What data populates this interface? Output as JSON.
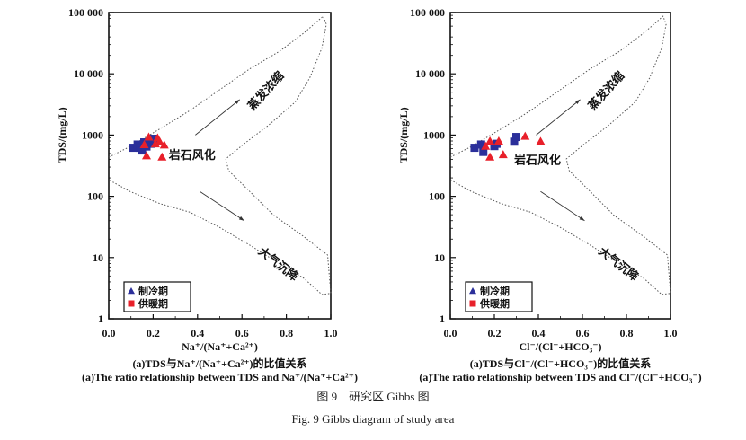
{
  "figure": {
    "caption_cn": "图 9　研究区 Gibbs 图",
    "caption_en": "Fig. 9 Gibbs diagram of study area"
  },
  "colors": {
    "cooling": "#2b2f9a",
    "heating": "#e8202a",
    "envelope": "#555555"
  },
  "gibbs_envelope": [
    [
      0,
      436
    ],
    [
      0.095,
      646
    ],
    [
      0.23,
      1259
    ],
    [
      0.365,
      2512
    ],
    [
      0.5,
      5495
    ],
    [
      0.635,
      12023
    ],
    [
      0.77,
      23442
    ],
    [
      0.88,
      46774
    ],
    [
      0.966,
      87096
    ],
    [
      0.98,
      64565
    ],
    [
      0.96,
      26303
    ],
    [
      0.905,
      8511
    ],
    [
      0.84,
      3467
    ],
    [
      0.716,
      1413
    ],
    [
      0.61,
      724
    ],
    [
      0.527,
      407
    ],
    [
      0.54,
      263
    ],
    [
      0.635,
      120
    ],
    [
      0.743,
      49
    ],
    [
      0.878,
      22
    ],
    [
      0.986,
      11
    ],
    [
      1.0,
      2.6
    ],
    [
      0.96,
      2.5
    ],
    [
      0.878,
      4.6
    ],
    [
      0.77,
      7.9
    ],
    [
      0.635,
      16
    ],
    [
      0.5,
      31
    ],
    [
      0.365,
      55
    ],
    [
      0.23,
      76
    ],
    [
      0.095,
      120
    ],
    [
      0,
      186
    ]
  ],
  "chart_data": [
    {
      "type": "scatter",
      "xlabel": "Na⁺/(Na⁺+Ca²⁺)",
      "ylabel": "TDS/(mg/L)",
      "caption_cn": "(a)TDS与Na⁺/(Na⁺+Ca²⁺)的比值关系",
      "caption_en": "(a)The ratio relationship between TDS and Na⁺/(Na⁺+Ca²⁺)",
      "xlim": [
        0,
        1.0
      ],
      "ylim": [
        1,
        100000
      ],
      "yscale": "log",
      "xticks": [
        "0.0",
        "0.2",
        "0.4",
        "0.6",
        "0.8",
        "1.0"
      ],
      "yticks": [
        "1",
        "10",
        "100",
        "1000",
        "10 000",
        "100 000"
      ],
      "annotations": {
        "evaporation": "蒸发浓缩",
        "rock": "岩石风化",
        "precipitation": "大气沉降"
      },
      "legend_position": "bottom-left",
      "series": [
        {
          "name": "制冷期",
          "legend_marker": "triangle",
          "plot_marker": "square",
          "color": "#2b2f9a",
          "points": [
            [
              0.11,
              620
            ],
            [
              0.13,
              700
            ],
            [
              0.14,
              620
            ],
            [
              0.15,
              560
            ],
            [
              0.16,
              760
            ],
            [
              0.17,
              650
            ],
            [
              0.2,
              870
            ],
            [
              0.21,
              800
            ],
            [
              0.19,
              720
            ]
          ]
        },
        {
          "name": "供暖期",
          "legend_marker": "square",
          "plot_marker": "triangle",
          "color": "#e8202a",
          "points": [
            [
              0.18,
              930
            ],
            [
              0.22,
              900
            ],
            [
              0.23,
              780
            ],
            [
              0.25,
              690
            ],
            [
              0.17,
              460
            ],
            [
              0.24,
              440
            ],
            [
              0.16,
              700
            ],
            [
              0.21,
              720
            ]
          ]
        }
      ]
    },
    {
      "type": "scatter",
      "xlabel": "Cl⁻/(Cl⁻+HCO₃⁻)",
      "ylabel": "TDS/(mg/L)",
      "caption_cn": "(a)TDS与Cl⁻/(Cl⁻+HCO₃⁻)的比值关系",
      "caption_en": "(a)The ratio relationship between TDS and Cl⁻/(Cl⁻+HCO₃⁻)",
      "xlim": [
        0,
        1.0
      ],
      "ylim": [
        1,
        100000
      ],
      "yscale": "log",
      "xticks": [
        "0.0",
        "0.2",
        "0.4",
        "0.6",
        "0.8",
        "1.0"
      ],
      "yticks": [
        "1",
        "10",
        "100",
        "1000",
        "10 000",
        "100 000"
      ],
      "annotations": {
        "evaporation": "蒸发浓缩",
        "rock": "岩石风化",
        "precipitation": "大气沉降"
      },
      "legend_position": "bottom-left",
      "series": [
        {
          "name": "制冷期",
          "legend_marker": "triangle",
          "plot_marker": "square",
          "color": "#2b2f9a",
          "points": [
            [
              0.11,
              620
            ],
            [
              0.14,
              700
            ],
            [
              0.15,
              530
            ],
            [
              0.2,
              660
            ],
            [
              0.21,
              720
            ],
            [
              0.29,
              780
            ],
            [
              0.3,
              930
            ]
          ]
        },
        {
          "name": "供暖期",
          "legend_marker": "square",
          "plot_marker": "triangle",
          "color": "#e8202a",
          "points": [
            [
              0.18,
              800
            ],
            [
              0.22,
              800
            ],
            [
              0.18,
              440
            ],
            [
              0.24,
              480
            ],
            [
              0.34,
              960
            ],
            [
              0.41,
              790
            ],
            [
              0.16,
              660
            ]
          ]
        }
      ]
    }
  ]
}
